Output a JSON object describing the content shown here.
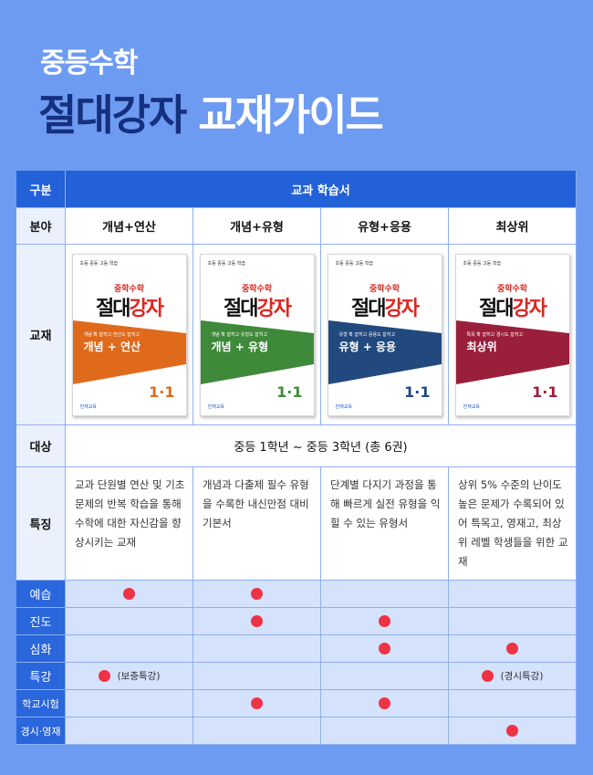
{
  "header": {
    "subtitle": "중등수학",
    "title_strong": "절대강자",
    "title_light": "교재가이드"
  },
  "table": {
    "head": {
      "label": "구분",
      "span": "교과 학습서"
    },
    "field": {
      "label": "분야",
      "values": [
        "개념+연산",
        "개념+유형",
        "유형+응용",
        "최상위"
      ]
    },
    "books": {
      "label": "교재",
      "items": [
        {
          "tag": "초등 중등 고등 학습",
          "series": "중학수학",
          "mark_a": "절대",
          "mark_b": "강자",
          "note": "개념 확 잡히고 연산도 잡히고",
          "kind": "개념 + 연산",
          "grade": "1·1",
          "band_color": "#e06a1b",
          "grade_color": "#e06a1b",
          "publisher": "천재교육"
        },
        {
          "tag": "초등 중등 고등 학습",
          "series": "중학수학",
          "mark_a": "절대",
          "mark_b": "강자",
          "note": "개념 확 잡히고 유형도 잡히고",
          "kind": "개념 + 유형",
          "grade": "1·1",
          "band_color": "#3f8a3a",
          "grade_color": "#3f8a3a",
          "publisher": "천재교육"
        },
        {
          "tag": "초등 중등 고등 학습",
          "series": "중학수학",
          "mark_a": "절대",
          "mark_b": "강자",
          "note": "유형 확 잡히고 응용도 잡히고",
          "kind": "유형 + 응용",
          "grade": "1·1",
          "band_color": "#21497e",
          "grade_color": "#21497e",
          "publisher": "천재교육"
        },
        {
          "tag": "초등 중등 고등 학습",
          "series": "중학수학",
          "mark_a": "절대",
          "mark_b": "강자",
          "note": "특목 확 잡히고 경시도 잡히고",
          "kind": "최상위",
          "grade": "1·1",
          "band_color": "#9a1f3b",
          "grade_color": "#9a1f3b",
          "publisher": "천재교육"
        }
      ]
    },
    "target": {
      "label": "대상",
      "value": "중등 1학년 ~ 중등 3학년 (총 6권)"
    },
    "features": {
      "label": "특징",
      "values": [
        "교과 단원별 연산 및 기초문제의 반복 학습을 통해 수학에 대한 자신감을 향상시키는 교재",
        "개념과 다출제 필수 유형을 수록한 내신만점 대비 기본서",
        "단계별 다지기 과정을 통해 빠르게 실전 유형을 익힐 수 있는 유형서",
        "상위 5% 수준의 난이도 높은 문제가 수록되어 있어 특목고, 영재고, 최상위 레벨 학생들을 위한 교재"
      ]
    },
    "levels": [
      {
        "label": "예습",
        "marks": [
          true,
          true,
          false,
          false
        ],
        "notes": [
          "",
          "",
          "",
          ""
        ]
      },
      {
        "label": "진도",
        "marks": [
          false,
          true,
          true,
          false
        ],
        "notes": [
          "",
          "",
          "",
          ""
        ]
      },
      {
        "label": "심화",
        "marks": [
          false,
          false,
          true,
          true
        ],
        "notes": [
          "",
          "",
          "",
          ""
        ]
      },
      {
        "label": "특강",
        "marks": [
          true,
          false,
          false,
          true
        ],
        "notes": [
          "(보충특강)",
          "",
          "",
          "(경시특강)"
        ]
      },
      {
        "label": "학교시험",
        "marks": [
          false,
          true,
          true,
          false
        ],
        "notes": [
          "",
          "",
          "",
          ""
        ]
      },
      {
        "label": "경시·영재",
        "marks": [
          false,
          false,
          false,
          true
        ],
        "notes": [
          "",
          "",
          "",
          ""
        ]
      }
    ]
  },
  "colors": {
    "background": "#6e9bf2",
    "header_blue": "#2361d8",
    "title_navy": "#14307e",
    "dot_red": "#ef3344"
  }
}
